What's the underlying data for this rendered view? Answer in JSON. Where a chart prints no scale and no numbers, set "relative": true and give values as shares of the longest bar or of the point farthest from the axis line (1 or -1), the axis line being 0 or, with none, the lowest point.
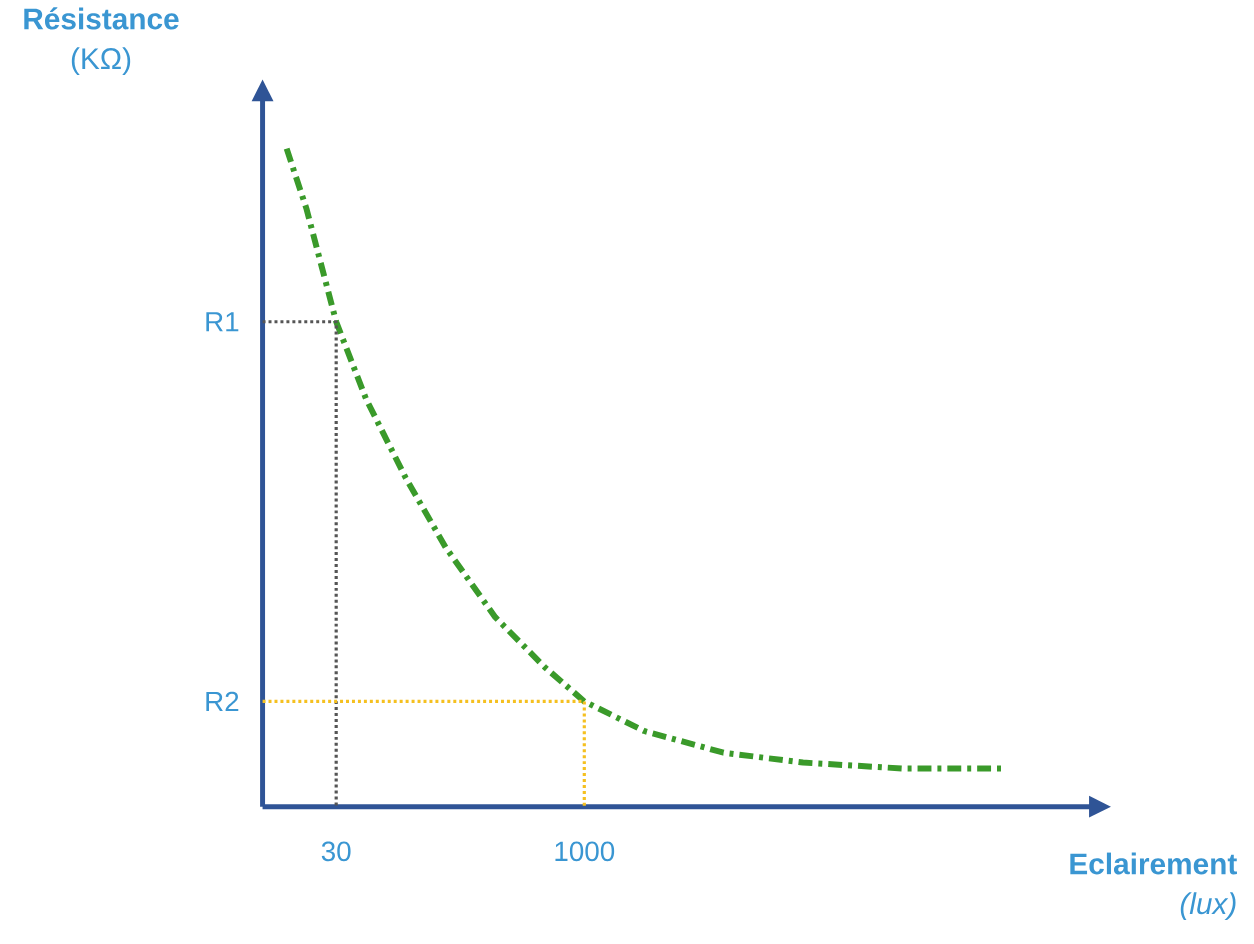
{
  "chart_data": {
    "type": "line",
    "xlabel": "**Eclairement** *(lux)*",
    "ylabel": "**Résistance** (KΩ)",
    "log": "x",
    "relative": true,
    "xlim": [
      10.6,
      1290000
    ],
    "xticks": [
      30,
      1000
    ],
    "annotations": [
      {
        "text": "R1",
        "x": 10.6,
        "y": 0.737
      },
      {
        "text": "R2",
        "x": 10.6,
        "y": 0.16
      }
    ],
    "series": [
      {
        "color": "#3a9a2a",
        "line_style": "dashed",
        "x": [
          14.9,
          19.7,
          30,
          45.7,
          80,
          141,
          284,
          572,
          1000,
          2330,
          7160,
          22000,
          89800,
          366000
        ],
        "values": [
          1,
          0.909,
          0.737,
          0.62,
          0.5,
          0.394,
          0.288,
          0.212,
          0.16,
          0.115,
          0.082,
          0.067,
          0.058,
          0.058
        ]
      },
      {
        "color": "#555555",
        "line_style": "dotted",
        "x": [
          10.6,
          30,
          30
        ],
        "values": [
          0.737,
          0.737,
          0
        ]
      },
      {
        "color": "#f5c020",
        "line_style": "dotted",
        "x": [
          10.6,
          1000,
          1000
        ],
        "values": [
          0.16,
          0.16,
          0
        ]
      }
    ]
  }
}
